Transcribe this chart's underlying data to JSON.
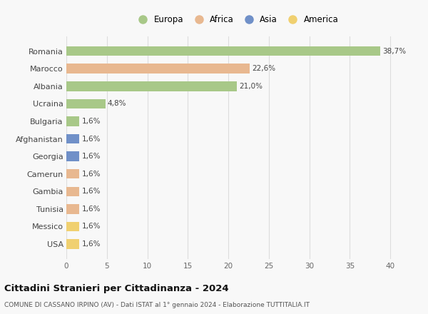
{
  "categories": [
    "Romania",
    "Marocco",
    "Albania",
    "Ucraina",
    "Bulgaria",
    "Afghanistan",
    "Georgia",
    "Camerun",
    "Gambia",
    "Tunisia",
    "Messico",
    "USA"
  ],
  "values": [
    38.7,
    22.6,
    21.0,
    4.8,
    1.6,
    1.6,
    1.6,
    1.6,
    1.6,
    1.6,
    1.6,
    1.6
  ],
  "labels": [
    "38,7%",
    "22,6%",
    "21,0%",
    "4,8%",
    "1,6%",
    "1,6%",
    "1,6%",
    "1,6%",
    "1,6%",
    "1,6%",
    "1,6%",
    "1,6%"
  ],
  "colors": [
    "#a8c888",
    "#e8b890",
    "#a8c888",
    "#a8c888",
    "#a8c888",
    "#7090c8",
    "#7090c8",
    "#e8b890",
    "#e8b890",
    "#e8b890",
    "#f0d070",
    "#f0d070"
  ],
  "legend_labels": [
    "Europa",
    "Africa",
    "Asia",
    "America"
  ],
  "legend_colors": [
    "#a8c888",
    "#e8b890",
    "#7090c8",
    "#f0d070"
  ],
  "title": "Cittadini Stranieri per Cittadinanza - 2024",
  "subtitle": "COMUNE DI CASSANO IRPINO (AV) - Dati ISTAT al 1° gennaio 2024 - Elaborazione TUTTITALIA.IT",
  "xlim": [
    0,
    42
  ],
  "xticks": [
    0,
    5,
    10,
    15,
    20,
    25,
    30,
    35,
    40
  ],
  "background_color": "#f8f8f8",
  "grid_color": "#dddddd",
  "bar_height": 0.55
}
